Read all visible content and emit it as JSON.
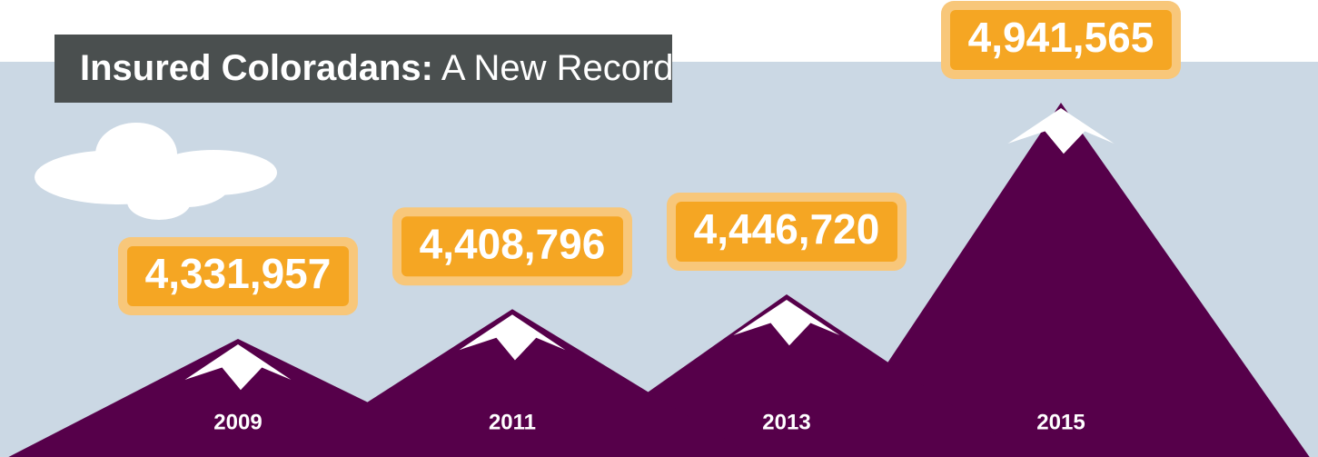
{
  "chart_data": {
    "type": "mountain",
    "title": "Insured Coloradans:",
    "subtitle": "A New Record",
    "categories": [
      "2009",
      "2011",
      "2013",
      "2015"
    ],
    "values": [
      4331957,
      4408796,
      4446720,
      4941565
    ],
    "value_labels": [
      "4,331,957",
      "4,408,796",
      "4,446,720",
      "4,941,565"
    ],
    "color": "#56004a"
  }
}
